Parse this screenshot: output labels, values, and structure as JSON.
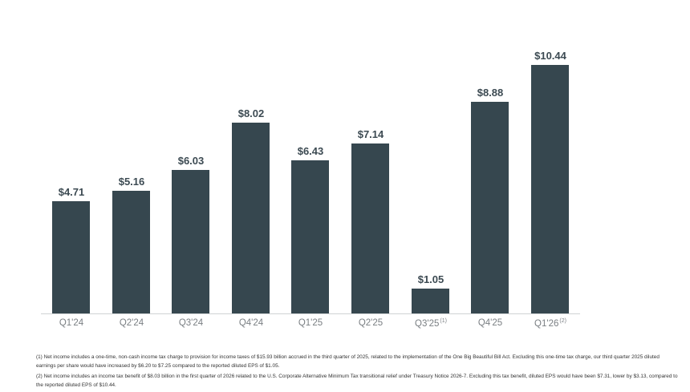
{
  "chart_data": {
    "type": "bar",
    "title": "",
    "xlabel": "",
    "ylabel": "",
    "categories": [
      "Q1'24",
      "Q2'24",
      "Q3'24",
      "Q4'24",
      "Q1'25",
      "Q2'25",
      "Q3'25",
      "Q4'25",
      "Q1'26"
    ],
    "category_superscripts": [
      "",
      "",
      "",
      "",
      "",
      "",
      "(1)",
      "",
      "(2)"
    ],
    "values": [
      4.71,
      5.16,
      6.03,
      8.02,
      6.43,
      7.14,
      1.05,
      8.88,
      10.44
    ],
    "value_labels": [
      "$4.71",
      "$5.16",
      "$6.03",
      "$8.02",
      "$6.43",
      "$7.14",
      "$1.05",
      "$8.88",
      "$10.44"
    ],
    "ylim": [
      0,
      10.44
    ],
    "grid": false,
    "legend": null,
    "bar_color": "#36474f"
  },
  "footnotes": [
    "(1) Net income includes a one-time, non-cash income tax charge to provision for income taxes of $15.93 billion accrued in the third quarter of 2025, related to the implementation of the One Big Beautiful Bill Act. Excluding this one-time tax charge, our third quarter 2025 diluted earnings per share would have increased by $6.20 to $7.25 compared to the reported diluted EPS of $1.05.",
    "(2) Net income includes an income tax benefit of $8.03 billion in the first quarter of 2026 related to the U.S. Corporate Alternative Minimum Tax transitional relief under Treasury Notice 2026-7. Excluding this tax benefit, diluted EPS would have been $7.31, lower by $3.13, compared to the reported diluted EPS of $10.44."
  ]
}
